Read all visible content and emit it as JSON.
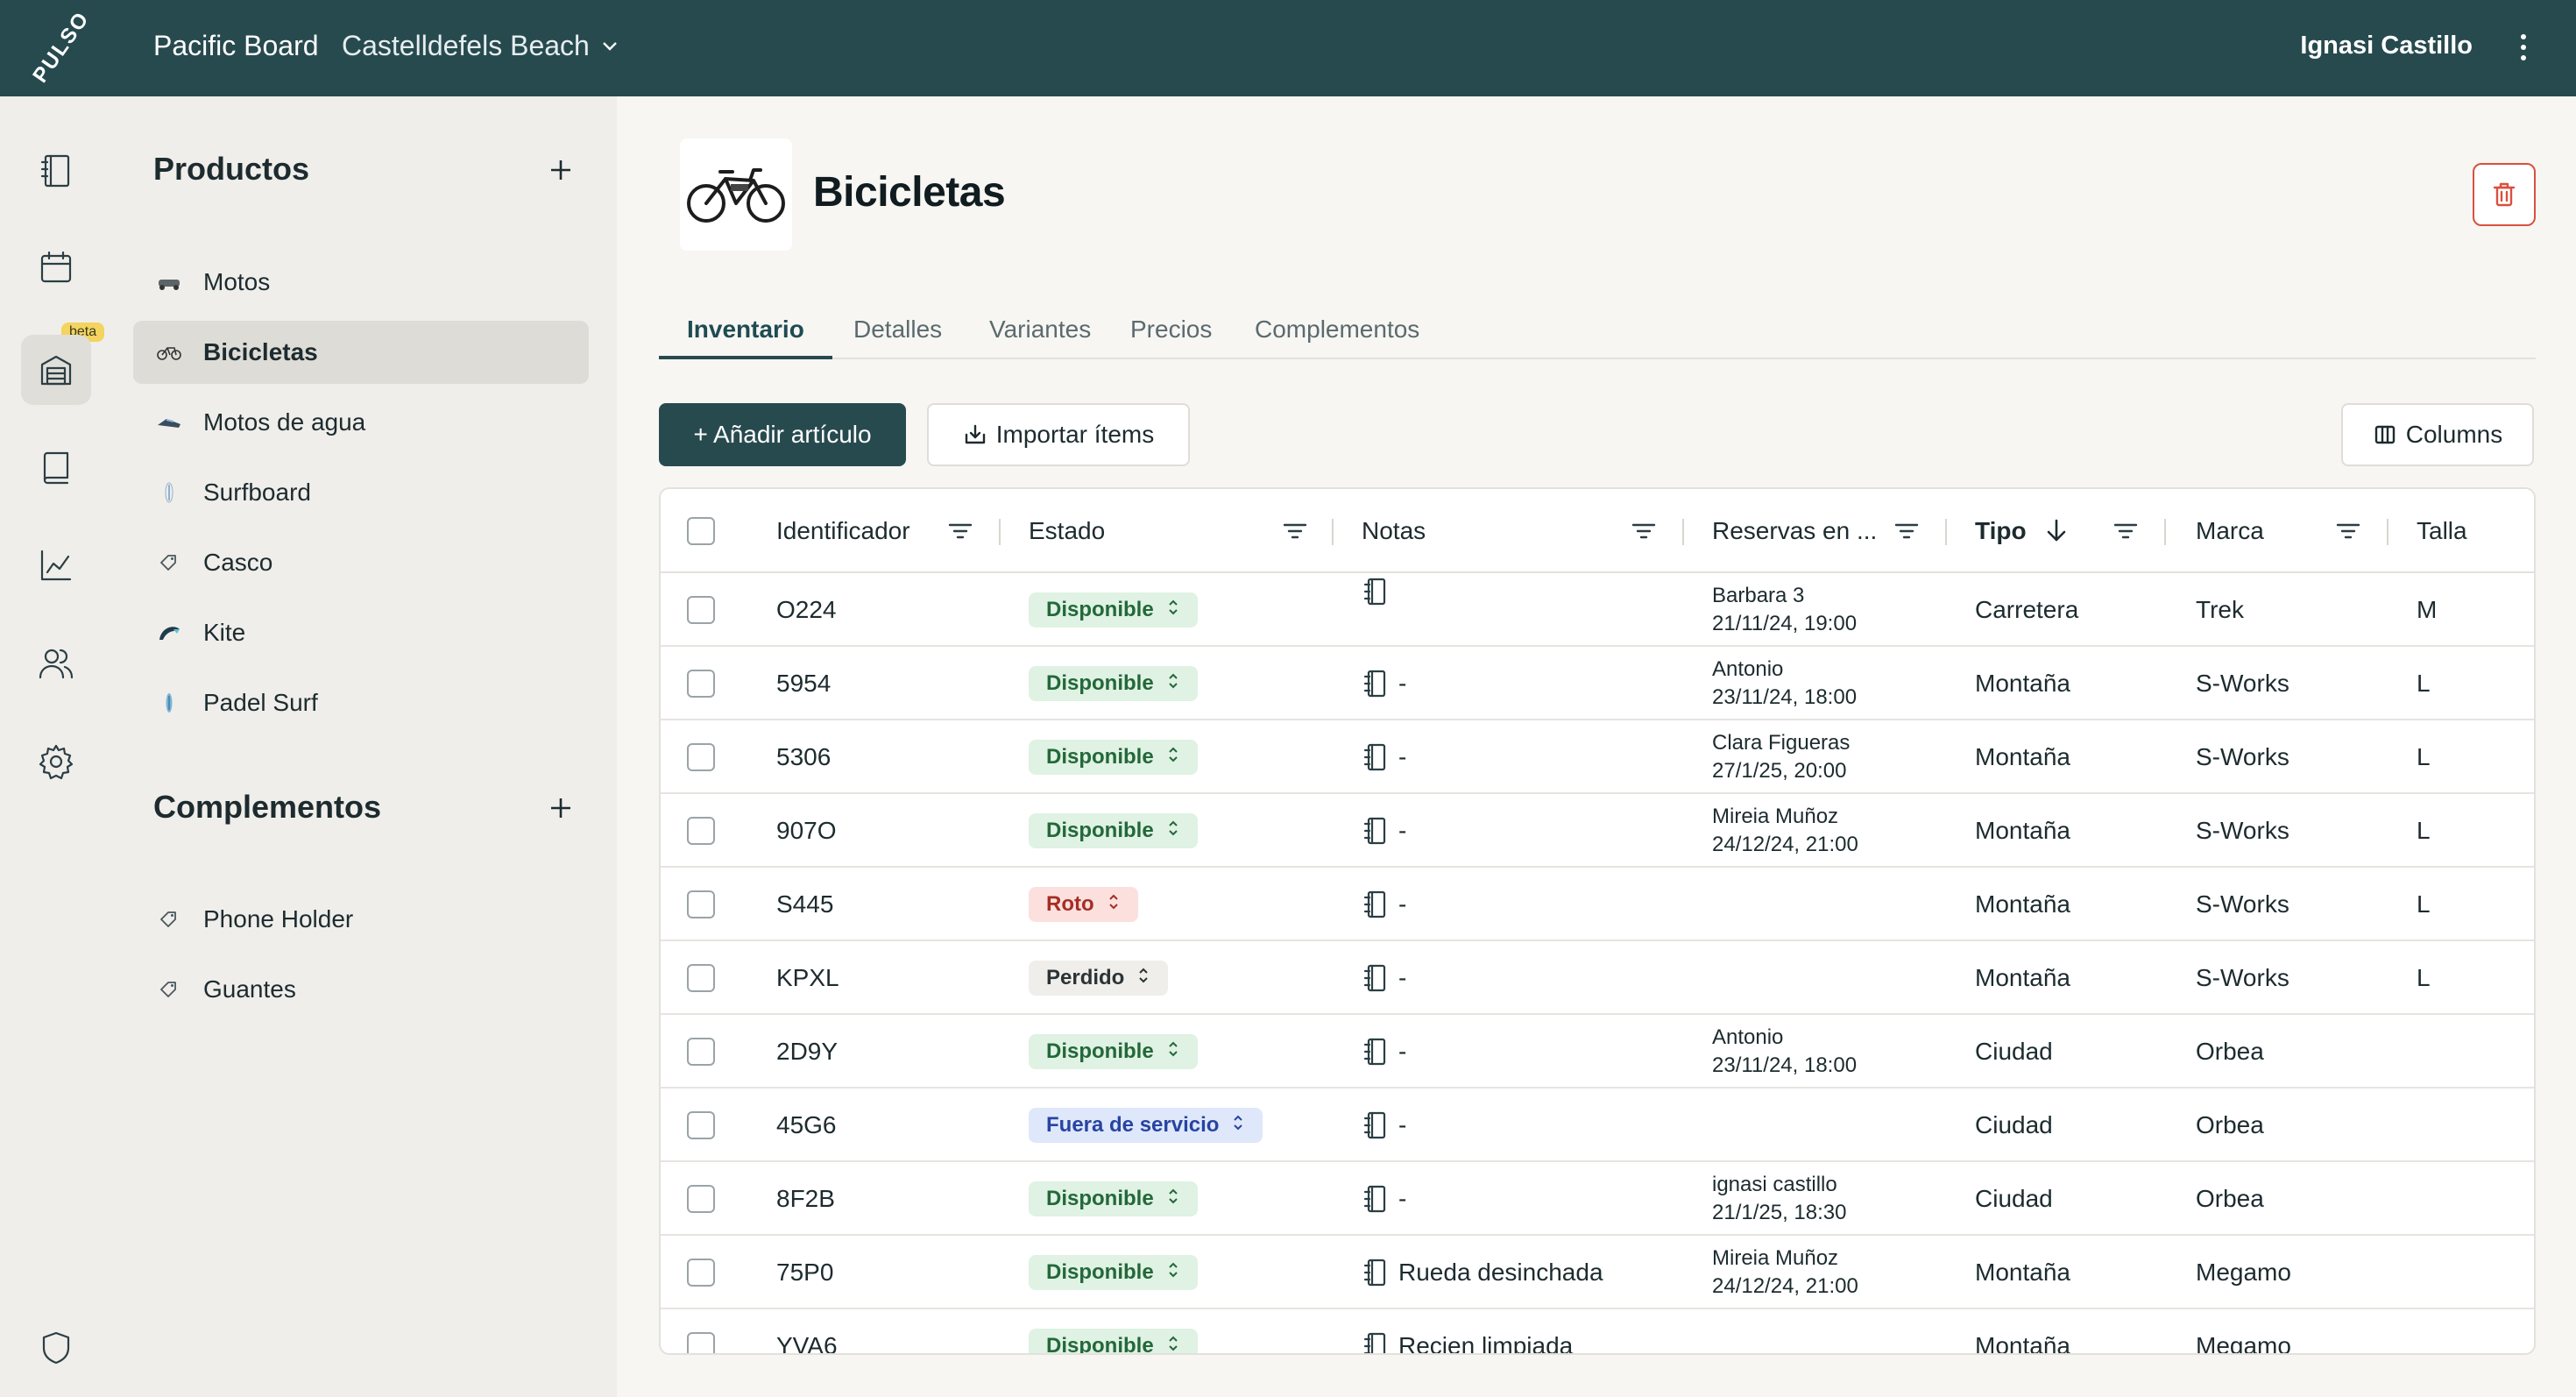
{
  "topbar": {
    "logo": "PULSO",
    "org": "Pacific Board",
    "location": "Castelldefels Beach",
    "user": "Ignasi Castillo"
  },
  "rail": {
    "beta_label": "beta",
    "items": [
      "notebook-icon",
      "calendar-icon",
      "inventory-icon",
      "book-icon",
      "chart-icon",
      "users-icon",
      "settings-icon",
      "shield-icon"
    ]
  },
  "sidebar": {
    "products_heading": "Productos",
    "products": [
      {
        "label": "Motos",
        "icon": "motorbike-icon"
      },
      {
        "label": "Bicicletas",
        "icon": "bicycle-icon"
      },
      {
        "label": "Motos de agua",
        "icon": "jetski-icon"
      },
      {
        "label": "Surfboard",
        "icon": "surfboard-icon"
      },
      {
        "label": "Casco",
        "icon": "tag-icon"
      },
      {
        "label": "Kite",
        "icon": "kite-icon"
      },
      {
        "label": "Padel Surf",
        "icon": "paddleboard-icon"
      }
    ],
    "complements_heading": "Complementos",
    "complements": [
      {
        "label": "Phone Holder",
        "icon": "tag-icon"
      },
      {
        "label": "Guantes",
        "icon": "tag-icon"
      }
    ]
  },
  "page": {
    "title": "Bicicletas",
    "tabs": [
      "Inventario",
      "Detalles",
      "Variantes",
      "Precios",
      "Complementos"
    ],
    "add_button": "+ Añadir artículo",
    "import_button": "Importar ítems",
    "columns_button": "Columns"
  },
  "table": {
    "headers": {
      "id": "Identificador",
      "status": "Estado",
      "notes": "Notas",
      "reservations": "Reservas en ...",
      "type": "Tipo",
      "brand": "Marca",
      "size": "Talla"
    },
    "rows": [
      {
        "id": "O224",
        "status": "Disponible",
        "status_kind": "ok",
        "note": "",
        "res_name": "Barbara 3",
        "res_date": "21/11/24, 19:00",
        "type": "Carretera",
        "brand": "Trek",
        "size": "M"
      },
      {
        "id": "5954",
        "status": "Disponible",
        "status_kind": "ok",
        "note": "-",
        "res_name": "Antonio",
        "res_date": "23/11/24, 18:00",
        "type": "Montaña",
        "brand": "S-Works",
        "size": "L"
      },
      {
        "id": "5306",
        "status": "Disponible",
        "status_kind": "ok",
        "note": "-",
        "res_name": "Clara Figueras",
        "res_date": "27/1/25, 20:00",
        "type": "Montaña",
        "brand": "S-Works",
        "size": "L"
      },
      {
        "id": "907O",
        "status": "Disponible",
        "status_kind": "ok",
        "note": "-",
        "res_name": "Mireia Muñoz",
        "res_date": "24/12/24, 21:00",
        "type": "Montaña",
        "brand": "S-Works",
        "size": "L"
      },
      {
        "id": "S445",
        "status": "Roto",
        "status_kind": "broken",
        "note": "-",
        "res_name": "",
        "res_date": "",
        "type": "Montaña",
        "brand": "S-Works",
        "size": "L"
      },
      {
        "id": "KPXL",
        "status": "Perdido",
        "status_kind": "lost",
        "note": "-",
        "res_name": "",
        "res_date": "",
        "type": "Montaña",
        "brand": "S-Works",
        "size": "L"
      },
      {
        "id": "2D9Y",
        "status": "Disponible",
        "status_kind": "ok",
        "note": "-",
        "res_name": "Antonio",
        "res_date": "23/11/24, 18:00",
        "type": "Ciudad",
        "brand": "Orbea",
        "size": ""
      },
      {
        "id": "45G6",
        "status": "Fuera de servicio",
        "status_kind": "oos",
        "note": "-",
        "res_name": "",
        "res_date": "",
        "type": "Ciudad",
        "brand": "Orbea",
        "size": ""
      },
      {
        "id": "8F2B",
        "status": "Disponible",
        "status_kind": "ok",
        "note": "-",
        "res_name": "ignasi castillo",
        "res_date": "21/1/25, 18:30",
        "type": "Ciudad",
        "brand": "Orbea",
        "size": ""
      },
      {
        "id": "75P0",
        "status": "Disponible",
        "status_kind": "ok",
        "note": "Rueda desinchada",
        "res_name": "Mireia Muñoz",
        "res_date": "24/12/24, 21:00",
        "type": "Montaña",
        "brand": "Megamo",
        "size": ""
      },
      {
        "id": "YVA6",
        "status": "Disponible",
        "status_kind": "ok",
        "note": "Recien limpiada",
        "res_name": "",
        "res_date": "",
        "type": "Montaña",
        "brand": "Megamo",
        "size": ""
      }
    ]
  },
  "colors": {
    "brand": "#274a4f",
    "danger": "#d9503f",
    "available_bg": "#dff2e3",
    "broken_bg": "#fbe0de",
    "out_of_service_bg": "#dfe7fb"
  }
}
